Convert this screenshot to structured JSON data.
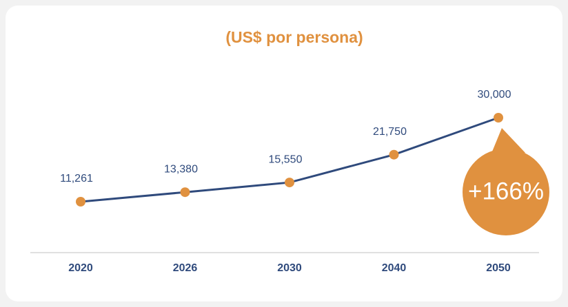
{
  "chart_data": {
    "type": "line",
    "title": "(US$ por persona)",
    "categories": [
      "2020",
      "2026",
      "2030",
      "2040",
      "2050"
    ],
    "series": [
      {
        "name": "US$ por persona",
        "color": "#2f4a7c",
        "marker_color": "#e0913f",
        "values": [
          11261,
          13380,
          15550,
          21750,
          30000
        ],
        "value_labels": [
          "11,261",
          "13,380",
          "15,550",
          "21,750",
          "30,000"
        ]
      }
    ],
    "annotation": "+166%",
    "annotation_color": "#e0913f"
  }
}
